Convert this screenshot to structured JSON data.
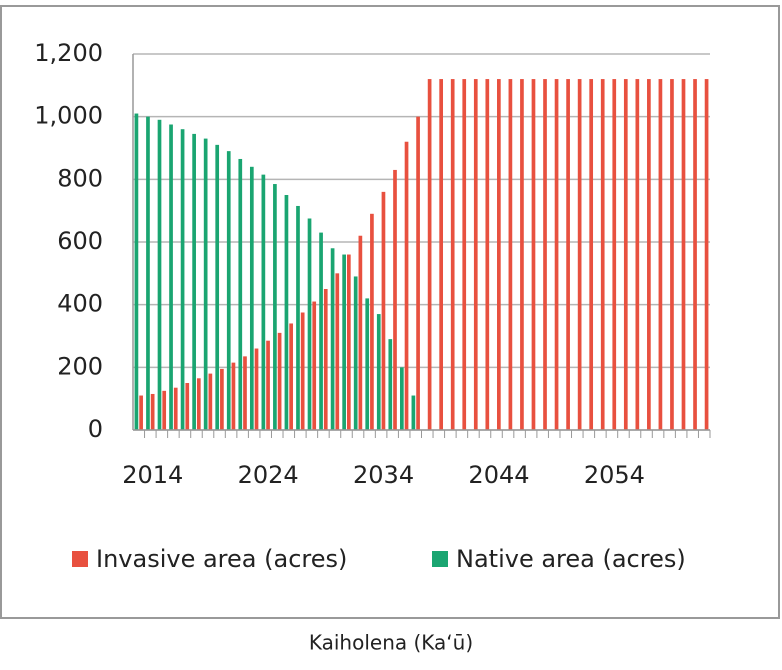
{
  "chart_data": {
    "type": "bar",
    "caption": "Kaiholena (Ka‘ū)",
    "categories": [
      "2014",
      null,
      null,
      null,
      null,
      null,
      null,
      null,
      null,
      null,
      "2024",
      null,
      null,
      null,
      null,
      null,
      null,
      null,
      null,
      null,
      "2034",
      null,
      null,
      null,
      null,
      null,
      null,
      null,
      null,
      null,
      "2044",
      null,
      null,
      null,
      null,
      null,
      null,
      null,
      null,
      null,
      "2054",
      null,
      null,
      null,
      null,
      null,
      null,
      null,
      null,
      null
    ],
    "series": [
      {
        "name": "Invasive area (acres)",
        "color": "#e8503f",
        "values": [
          110,
          115,
          125,
          135,
          150,
          165,
          180,
          195,
          215,
          235,
          260,
          285,
          310,
          340,
          375,
          410,
          450,
          500,
          560,
          620,
          690,
          760,
          830,
          920,
          1000,
          1120,
          1120,
          1120,
          1120,
          1120,
          1120,
          1120,
          1120,
          1120,
          1120,
          1120,
          1120,
          1120,
          1120,
          1120,
          1120,
          1120,
          1120,
          1120,
          1120,
          1120,
          1120,
          1120,
          1120,
          1120
        ]
      },
      {
        "name": "Native area (acres)",
        "color": "#1aa571",
        "values": [
          1010,
          1000,
          990,
          975,
          960,
          945,
          930,
          910,
          890,
          865,
          840,
          815,
          785,
          750,
          715,
          675,
          630,
          580,
          560,
          490,
          420,
          370,
          290,
          200,
          110,
          null,
          null,
          null,
          null,
          null,
          null,
          null,
          null,
          null,
          null,
          null,
          null,
          null,
          null,
          null,
          null,
          null,
          null,
          null,
          null,
          null,
          null,
          null,
          null,
          null
        ]
      }
    ],
    "ylim": [
      0,
      1200
    ],
    "yticks": [
      0,
      200,
      400,
      600,
      800,
      {
        "value": 1000,
        "label": "1,000"
      },
      {
        "value": 1200,
        "label": "1,200"
      }
    ],
    "grid": true,
    "legend": "bottom"
  }
}
